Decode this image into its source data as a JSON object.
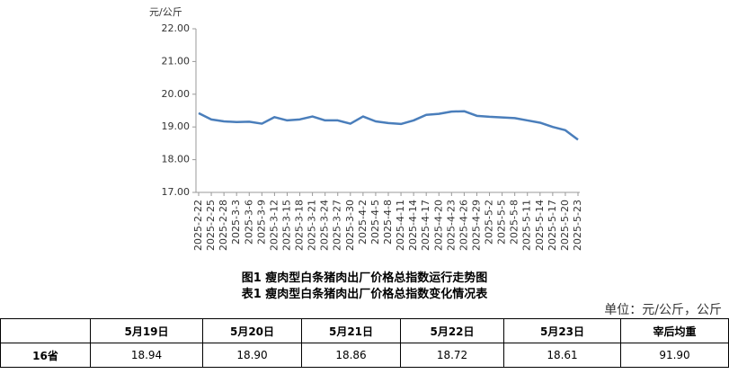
{
  "chart_data": {
    "type": "line",
    "ylabel": "元/公斤",
    "categories": [
      "2025-2-22",
      "2025-2-25",
      "2025-2-28",
      "2025-3-3",
      "2025-3-6",
      "2025-3-9",
      "2025-3-12",
      "2025-3-15",
      "2025-3-18",
      "2025-3-21",
      "2025-3-24",
      "2025-3-27",
      "2025-3-30",
      "2025-4-2",
      "2025-4-5",
      "2025-4-8",
      "2025-4-11",
      "2025-4-14",
      "2025-4-17",
      "2025-4-20",
      "2025-4-23",
      "2025-4-26",
      "2025-4-29",
      "2025-5-2",
      "2025-5-5",
      "2025-5-8",
      "2025-5-11",
      "2025-5-14",
      "2025-5-17",
      "2025-5-20",
      "2025-5-23"
    ],
    "values": [
      19.42,
      19.23,
      19.17,
      19.15,
      19.16,
      19.1,
      19.3,
      19.2,
      19.23,
      19.32,
      19.2,
      19.2,
      19.1,
      19.32,
      19.17,
      19.12,
      19.09,
      19.2,
      19.37,
      19.4,
      19.47,
      19.48,
      19.34,
      19.31,
      19.29,
      19.27,
      19.2,
      19.13,
      19.0,
      18.9,
      18.61
    ],
    "color": "#4a7ebb",
    "ylim": [
      17,
      22
    ],
    "yticks": [
      {
        "value": 17,
        "label": "17.00"
      },
      {
        "value": 18,
        "label": "18.00"
      },
      {
        "value": 19,
        "label": "19.00"
      },
      {
        "value": 20,
        "label": "20.00"
      },
      {
        "value": 21,
        "label": "21.00"
      },
      {
        "value": 22,
        "label": "22.00"
      }
    ]
  },
  "captions": [
    "图1 瘦肉型白条猪肉出厂价格总指数运行走势图",
    "表1 瘦肉型白条猪肉出厂价格总指数变化情况表"
  ],
  "unit": "单位：元/公斤，公斤",
  "table": {
    "header": [
      "",
      "5月19日",
      "5月20日",
      "5月21日",
      "5月22日",
      "5月23日",
      "宰后均重"
    ],
    "rows": [
      [
        "16省",
        "18.94",
        "18.90",
        "18.86",
        "18.72",
        "18.61",
        "91.90"
      ]
    ]
  }
}
